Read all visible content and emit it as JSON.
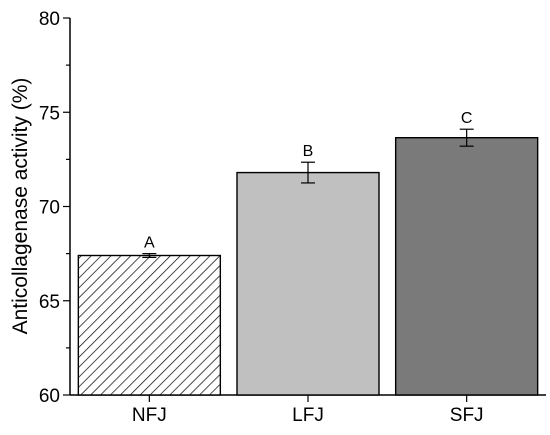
{
  "chart_data": {
    "type": "bar",
    "title": "",
    "xlabel": "",
    "ylabel": "Anticollagenase activity (%)",
    "ylim": [
      60,
      80
    ],
    "yticks": [
      "60",
      "65",
      "70",
      "75",
      "80"
    ],
    "categories": [
      "NFJ",
      "LFJ",
      "SFJ"
    ],
    "values": [
      67.4,
      71.8,
      73.65
    ],
    "errors": [
      0.1,
      0.55,
      0.45
    ],
    "significance_letters": [
      "A",
      "B",
      "C"
    ],
    "bar_fills": [
      "hatched",
      "#c0c0c0",
      "#7a7a7a"
    ],
    "grid": false,
    "legend": "none"
  }
}
